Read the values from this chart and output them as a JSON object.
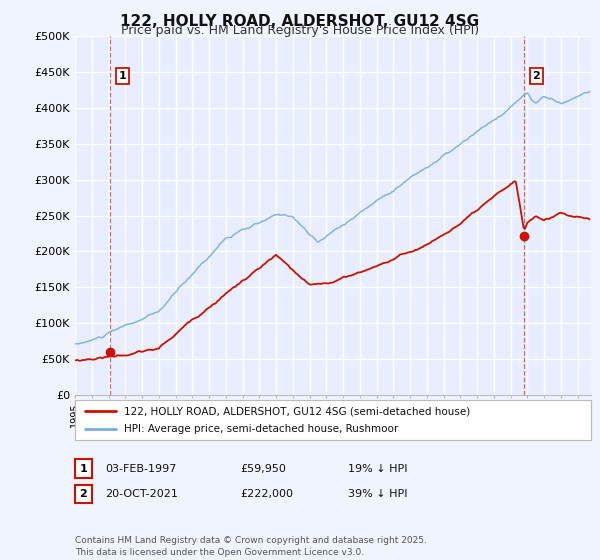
{
  "title": "122, HOLLY ROAD, ALDERSHOT, GU12 4SG",
  "subtitle": "Price paid vs. HM Land Registry's House Price Index (HPI)",
  "ylim": [
    0,
    500000
  ],
  "yticks": [
    0,
    50000,
    100000,
    150000,
    200000,
    250000,
    300000,
    350000,
    400000,
    450000,
    500000
  ],
  "ytick_labels": [
    "£0",
    "£50K",
    "£100K",
    "£150K",
    "£200K",
    "£250K",
    "£300K",
    "£350K",
    "£400K",
    "£450K",
    "£500K"
  ],
  "background_color": "#f0f4ff",
  "plot_bg_color": "#e8eeff",
  "grid_color": "#ffffff",
  "hpi_color": "#7aaddc",
  "price_color": "#cc1100",
  "marker1_year": 1997.09,
  "marker1_price": 59950,
  "marker2_year": 2021.8,
  "marker2_price": 222000,
  "legend_label1": "122, HOLLY ROAD, ALDERSHOT, GU12 4SG (semi-detached house)",
  "legend_label2": "HPI: Average price, semi-detached house, Rushmoor",
  "table_row1": [
    "1",
    "03-FEB-1997",
    "£59,950",
    "19% ↓ HPI"
  ],
  "table_row2": [
    "2",
    "20-OCT-2021",
    "£222,000",
    "39% ↓ HPI"
  ],
  "footnote": "Contains HM Land Registry data © Crown copyright and database right 2025.\nThis data is licensed under the Open Government Licence v3.0.",
  "title_fontsize": 11,
  "subtitle_fontsize": 9,
  "tick_fontsize": 8,
  "xlim_start": 1995,
  "xlim_end": 2025.8
}
